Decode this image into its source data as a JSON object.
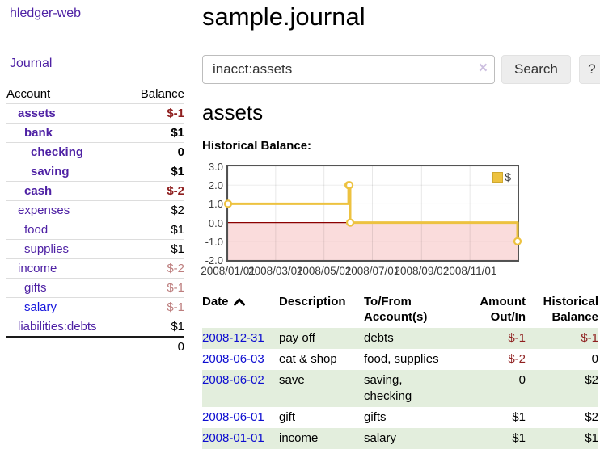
{
  "app": {
    "brand": "hledger-web",
    "nav_journal": "Journal"
  },
  "colors": {
    "link_purple": "#4e21a4",
    "link_blue": "#1414dd",
    "date_link_blue": "#0d0dd0",
    "negative_strong": "#8f1f1f",
    "negative_soft": "#bd7e7e",
    "row_green": "#e3eedd",
    "chart_line_yellow": "#edc240",
    "chart_negative_fill": "#fadcdc",
    "zero_line_red": "#8b0000"
  },
  "sidebar": {
    "header": {
      "account": "Account",
      "balance": "Balance"
    },
    "accounts": [
      {
        "name": "assets",
        "indent": 1,
        "bold": true,
        "balance": "$-1",
        "balance_style": "neg-strong"
      },
      {
        "name": "bank",
        "indent": 2,
        "bold": true,
        "balance": "$1",
        "balance_style": "pos"
      },
      {
        "name": "checking",
        "indent": 3,
        "bold": true,
        "balance": "0",
        "balance_style": "pos"
      },
      {
        "name": "saving",
        "indent": 3,
        "bold": true,
        "balance": "$1",
        "balance_style": "pos"
      },
      {
        "name": "cash",
        "indent": 2,
        "bold": true,
        "balance": "$-2",
        "balance_style": "neg-strong"
      },
      {
        "name": "expenses",
        "indent": 1,
        "bold": false,
        "balance": "$2",
        "balance_style": "pos"
      },
      {
        "name": "food",
        "indent": 2,
        "bold": false,
        "balance": "$1",
        "balance_style": "pos"
      },
      {
        "name": "supplies",
        "indent": 2,
        "bold": false,
        "balance": "$1",
        "balance_style": "pos"
      },
      {
        "name": "income",
        "indent": 1,
        "bold": false,
        "balance": "$-2",
        "balance_style": "neg-soft"
      },
      {
        "name": "gifts",
        "indent": 2,
        "bold": false,
        "balance": "$-1",
        "balance_style": "neg-soft"
      },
      {
        "name": "salary",
        "indent": 2,
        "bold": false,
        "balance": "$-1",
        "balance_style": "neg-soft",
        "link_color": "blue"
      },
      {
        "name": "liabilities:debts",
        "indent": 1,
        "bold": false,
        "balance": "$1",
        "balance_style": "pos"
      }
    ],
    "total": "0"
  },
  "header": {
    "title": "sample.journal"
  },
  "search": {
    "value": "inacct:assets",
    "clear_icon": "×",
    "button": "Search",
    "help_button": "?"
  },
  "account_page": {
    "heading": "assets",
    "chart_label": "Historical Balance:"
  },
  "chart_data": {
    "type": "line",
    "title": "Historical Balance:",
    "step": true,
    "series": [
      {
        "name": "$",
        "color": "#edc240",
        "points": [
          {
            "x": "2008/01/01",
            "y": 1
          },
          {
            "x": "2008/06/01",
            "y": 2
          },
          {
            "x": "2008/06/02",
            "y": 2
          },
          {
            "x": "2008/06/03",
            "y": 0
          },
          {
            "x": "2008/12/31",
            "y": -1
          }
        ]
      }
    ],
    "xlim": [
      "2008/01/01",
      "2008/12/31"
    ],
    "ylim": [
      -2,
      3
    ],
    "yticks": [
      {
        "label": "3.0",
        "value": 3
      },
      {
        "label": "2.0",
        "value": 2
      },
      {
        "label": "1.0",
        "value": 1
      },
      {
        "label": "0.0",
        "value": 0
      },
      {
        "label": "-1.0",
        "value": -1
      },
      {
        "label": "-2.0",
        "value": -2
      }
    ],
    "xticks": [
      {
        "label": "2008/01/01",
        "value": "2008/01/01"
      },
      {
        "label": "2008/03/01",
        "value": "2008/03/01"
      },
      {
        "label": "2008/05/01",
        "value": "2008/05/01"
      },
      {
        "label": "2008/07/01",
        "value": "2008/07/01"
      },
      {
        "label": "2008/09/01",
        "value": "2008/09/01"
      },
      {
        "label": "2008/11/01",
        "value": "2008/11/01"
      }
    ],
    "legend": {
      "label": "$",
      "position": "top-right"
    },
    "grid": true,
    "negative_region_color": "#fadcdc",
    "zero_line_color": "#8b0000"
  },
  "register": {
    "headers": [
      {
        "line1": "Date",
        "line2": "",
        "align": "left",
        "sort_icon": "caret-up"
      },
      {
        "line1": "Description",
        "line2": "",
        "align": "left"
      },
      {
        "line1": "To/From",
        "line2": "Account(s)",
        "align": "left"
      },
      {
        "line1": "Amount",
        "line2": "Out/In",
        "align": "right"
      },
      {
        "line1": "Historical",
        "line2": "Balance",
        "align": "right"
      }
    ],
    "rows": [
      {
        "date": "2008-12-31",
        "description": "pay off",
        "accounts": "debts",
        "amount": "$-1",
        "amount_negative": true,
        "balance": "$-1",
        "balance_negative": true,
        "shaded": true
      },
      {
        "date": "2008-06-03",
        "description": "eat & shop",
        "accounts": "food, supplies",
        "amount": "$-2",
        "amount_negative": true,
        "balance": "0",
        "balance_negative": false,
        "shaded": false
      },
      {
        "date": "2008-06-02",
        "description": "save",
        "accounts": "saving, checking",
        "amount": "0",
        "amount_negative": false,
        "balance": "$2",
        "balance_negative": false,
        "shaded": true
      },
      {
        "date": "2008-06-01",
        "description": "gift",
        "accounts": "gifts",
        "amount": "$1",
        "amount_negative": false,
        "balance": "$2",
        "balance_negative": false,
        "shaded": false
      },
      {
        "date": "2008-01-01",
        "description": "income",
        "accounts": "salary",
        "amount": "$1",
        "amount_negative": false,
        "balance": "$1",
        "balance_negative": false,
        "shaded": true
      }
    ]
  }
}
